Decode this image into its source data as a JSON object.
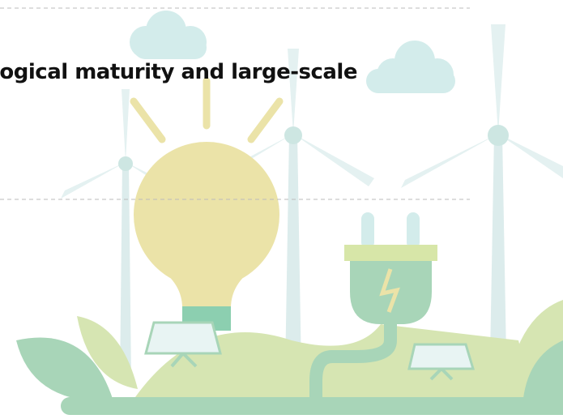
{
  "headline": "logical maturity and large-scale"
}
